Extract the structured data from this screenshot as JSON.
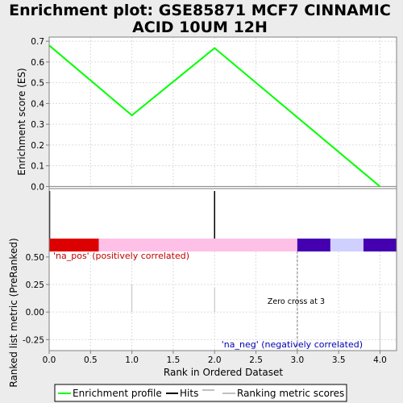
{
  "chart_data": {
    "type": "line",
    "title_line1": "Enrichment plot: GSE85871 MCF7 CINNAMIC",
    "title_line2": "ACID 10UM 12H",
    "xlabel": "Rank in Ordered Dataset",
    "xlim": [
      0,
      4.2
    ],
    "x_ticks": [
      0.0,
      0.5,
      1.0,
      1.5,
      2.0,
      2.5,
      3.0,
      3.5,
      4.0
    ],
    "x_tick_labels": [
      "0.0",
      "0.5",
      "1.0",
      "1.5",
      "2.0",
      "2.5",
      "3.0",
      "3.5",
      "4.0"
    ],
    "es_panel": {
      "ylabel": "Enrichment score (ES)",
      "ylim": [
        -0.01,
        0.72
      ],
      "y_ticks": [
        0.0,
        0.1,
        0.2,
        0.3,
        0.4,
        0.5,
        0.6,
        0.7
      ],
      "y_tick_labels": [
        "0.0",
        "0.1",
        "0.2",
        "0.3",
        "0.4",
        "0.5",
        "0.6",
        "0.7"
      ],
      "grid": true,
      "series": [
        {
          "name": "Enrichment profile",
          "color": "#00ff00",
          "x": [
            0,
            1,
            2,
            4
          ],
          "y": [
            0.68,
            0.343,
            0.667,
            0.0
          ]
        }
      ]
    },
    "hits_panel": {
      "hits": [
        0,
        2
      ]
    },
    "color_bar": [
      {
        "from": 0.0,
        "to": 0.6,
        "color": "#dd0000"
      },
      {
        "from": 0.6,
        "to": 3.0,
        "color": "#ffc0e8"
      },
      {
        "from": 3.0,
        "to": 3.4,
        "color": "#4400b0"
      },
      {
        "from": 3.4,
        "to": 3.8,
        "color": "#d0d0ff"
      },
      {
        "from": 3.8,
        "to": 4.2,
        "color": "#4400b0"
      }
    ],
    "metric_panel": {
      "ylabel": "Ranked list metric (PreRanked)",
      "ylim": [
        -0.35,
        0.55
      ],
      "y_ticks": [
        0.5,
        0.25,
        0.0,
        -0.25
      ],
      "y_tick_labels": [
        "0.50",
        "0.25",
        "0.00",
        "-0.25"
      ],
      "grid": true,
      "metric_bars": [
        {
          "x": 1.0,
          "value": 0.25
        },
        {
          "x": 2.0,
          "value": 0.22
        },
        {
          "x": 4.0,
          "value": -0.35
        }
      ],
      "zero_cross_x": 3.0,
      "zero_cross_label": "Zero cross at 3",
      "pos_label": "'na_pos' (positively correlated)",
      "neg_label": "'na_neg' (negatively correlated)",
      "pos_color": "#c00000",
      "neg_color": "#0000b0"
    },
    "legend": {
      "placement": "bottom",
      "entries": [
        {
          "label": "Enrichment profile",
          "color": "#00ff00"
        },
        {
          "label": "Hits",
          "color": "#000000"
        },
        {
          "label": "Ranking metric scores",
          "color": "#c0c0c0"
        }
      ]
    }
  }
}
